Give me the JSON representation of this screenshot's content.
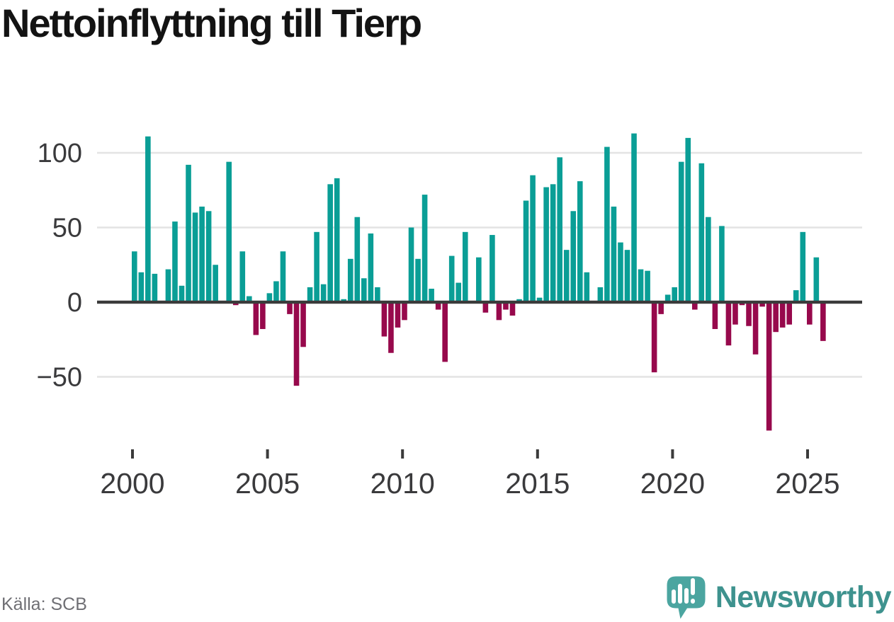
{
  "title": "Nettoinflyttning till Tierp",
  "source": "Källa: SCB",
  "branding": {
    "name": "Newsworthy"
  },
  "colors": {
    "positive": "#0A9E96",
    "negative": "#97094C",
    "axis": "#3B3B3B",
    "gridline": "#E3E3E3",
    "tick_label": "#3A3A3C",
    "source_text": "#6F6F74",
    "brand_text": "#3E928E",
    "brand_bubble": "#4BA5A0"
  },
  "chart_data": {
    "type": "bar",
    "title": "Nettoinflyttning till Tierp",
    "xlabel": "",
    "ylabel": "",
    "x_unit": "quarter",
    "range": "2000 Q1 – 2025 Q3",
    "yticks": [
      100,
      50,
      0,
      -50
    ],
    "xticks": [
      2000,
      2005,
      2010,
      2015,
      2020,
      2025
    ],
    "ylim": [
      -90,
      115
    ],
    "grid": "horizontal",
    "legend": "none",
    "quarters": [
      {
        "year": 2000,
        "values": [
          34,
          20,
          111,
          19
        ]
      },
      {
        "year": 2001,
        "values": [
          0,
          22,
          54,
          11
        ]
      },
      {
        "year": 2002,
        "values": [
          92,
          60,
          64,
          61
        ]
      },
      {
        "year": 2003,
        "values": [
          25,
          0,
          94,
          -2
        ]
      },
      {
        "year": 2004,
        "values": [
          34,
          4,
          -22,
          -18
        ]
      },
      {
        "year": 2005,
        "values": [
          6,
          14,
          34,
          -8
        ]
      },
      {
        "year": 2006,
        "values": [
          -56,
          -30,
          10,
          47
        ]
      },
      {
        "year": 2007,
        "values": [
          12,
          79,
          83,
          2
        ]
      },
      {
        "year": 2008,
        "values": [
          29,
          57,
          16,
          46
        ]
      },
      {
        "year": 2009,
        "values": [
          10,
          -23,
          -34,
          -17
        ]
      },
      {
        "year": 2010,
        "values": [
          -12,
          50,
          29,
          72
        ]
      },
      {
        "year": 2011,
        "values": [
          9,
          -5,
          -40,
          31
        ]
      },
      {
        "year": 2012,
        "values": [
          13,
          47,
          0,
          30
        ]
      },
      {
        "year": 2013,
        "values": [
          -7,
          45,
          -12,
          -5
        ]
      },
      {
        "year": 2014,
        "values": [
          -9,
          2,
          68,
          85
        ]
      },
      {
        "year": 2015,
        "values": [
          3,
          77,
          79,
          97
        ]
      },
      {
        "year": 2016,
        "values": [
          35,
          61,
          81,
          20
        ]
      },
      {
        "year": 2017,
        "values": [
          0,
          10,
          104,
          64
        ]
      },
      {
        "year": 2018,
        "values": [
          40,
          35,
          113,
          22
        ]
      },
      {
        "year": 2019,
        "values": [
          21,
          -47,
          -8,
          5
        ]
      },
      {
        "year": 2020,
        "values": [
          10,
          94,
          110,
          -5
        ]
      },
      {
        "year": 2021,
        "values": [
          93,
          57,
          -18,
          51
        ]
      },
      {
        "year": 2022,
        "values": [
          -29,
          -15,
          -2,
          -16
        ]
      },
      {
        "year": 2023,
        "values": [
          -35,
          -3,
          -86,
          -20
        ]
      },
      {
        "year": 2024,
        "values": [
          -17,
          -15,
          8,
          47
        ]
      },
      {
        "year": 2025,
        "values": [
          -15,
          30,
          -26
        ]
      }
    ]
  }
}
